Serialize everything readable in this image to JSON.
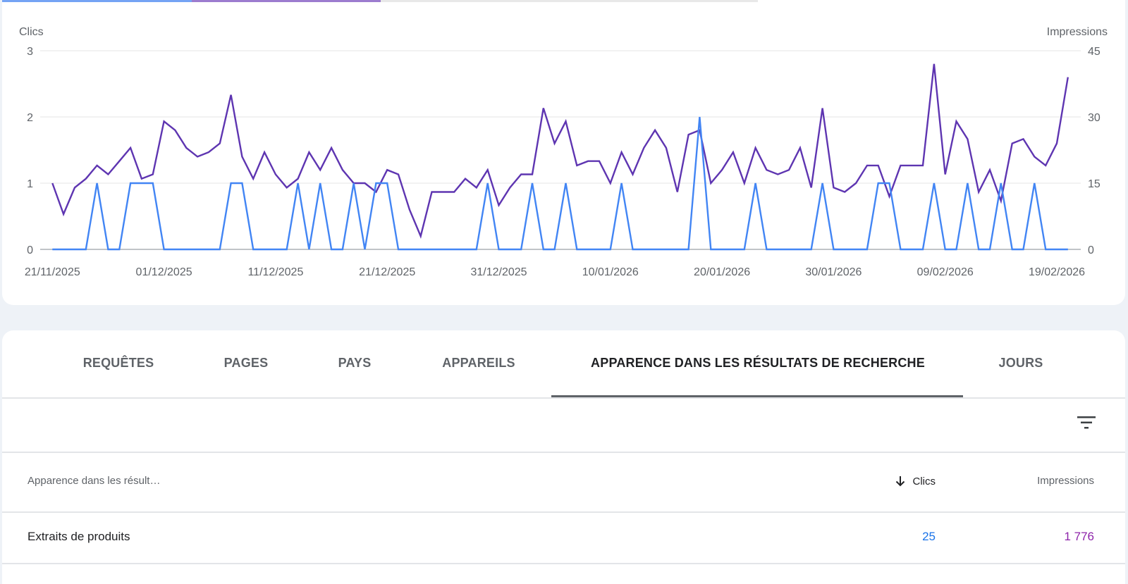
{
  "colors": {
    "clicks": "#4285f4",
    "impressions": "#5e35b1",
    "strip_clicks": "#74a3f4",
    "strip_impressions": "#9c7ccf",
    "strip_rest": "#e8e8e8"
  },
  "chart_data": {
    "type": "line",
    "left_axis_title": "Clics",
    "right_axis_title": "Impressions",
    "left_ylim": [
      0,
      3
    ],
    "right_ylim": [
      0,
      45
    ],
    "left_ticks": [
      "0",
      "1",
      "2",
      "3"
    ],
    "right_ticks": [
      "0",
      "15",
      "30",
      "45"
    ],
    "x_tick_labels": [
      "21/11/2025",
      "01/12/2025",
      "11/12/2025",
      "21/12/2025",
      "31/12/2025",
      "10/01/2026",
      "20/01/2026",
      "30/01/2026",
      "09/02/2026",
      "19/02/2026"
    ],
    "x_start": "21/11/2025",
    "x_end": "20/02/2026",
    "grid": true,
    "series": [
      {
        "name": "Clics",
        "axis": "left",
        "color": "#4285f4",
        "values": [
          0,
          0,
          0,
          0,
          1,
          0,
          0,
          1,
          1,
          1,
          0,
          0,
          0,
          0,
          0,
          0,
          1,
          1,
          0,
          0,
          0,
          0,
          1,
          0,
          1,
          0,
          0,
          1,
          0,
          1,
          1,
          0,
          0,
          0,
          0,
          0,
          0,
          0,
          0,
          1,
          0,
          0,
          0,
          1,
          0,
          0,
          1,
          0,
          0,
          0,
          0,
          1,
          0,
          0,
          0,
          0,
          0,
          0,
          2,
          0,
          0,
          0,
          0,
          1,
          0,
          0,
          0,
          0,
          0,
          1,
          0,
          0,
          0,
          0,
          1,
          1,
          0,
          0,
          0,
          1,
          0,
          0,
          1,
          0,
          0,
          1,
          0,
          0,
          1,
          0,
          0,
          0
        ]
      },
      {
        "name": "Impressions",
        "axis": "right",
        "color": "#5e35b1",
        "values": [
          15,
          8,
          14,
          16,
          19,
          17,
          20,
          23,
          16,
          17,
          29,
          27,
          23,
          21,
          22,
          24,
          35,
          21,
          16,
          22,
          17,
          14,
          16,
          22,
          18,
          23,
          18,
          15,
          15,
          13,
          18,
          17,
          9,
          3,
          13,
          13,
          13,
          16,
          14,
          18,
          10,
          14,
          17,
          17,
          32,
          24,
          29,
          19,
          20,
          20,
          15,
          22,
          17,
          23,
          27,
          23,
          13,
          26,
          27,
          15,
          18,
          22,
          15,
          23,
          18,
          17,
          18,
          23,
          14,
          32,
          14,
          13,
          15,
          19,
          19,
          12,
          19,
          19,
          19,
          42,
          17,
          29,
          25,
          13,
          18,
          11,
          24,
          25,
          21,
          19,
          24,
          39
        ]
      }
    ]
  },
  "tabs": [
    {
      "label": "REQUÊTES",
      "active": false
    },
    {
      "label": "PAGES",
      "active": false
    },
    {
      "label": "PAYS",
      "active": false
    },
    {
      "label": "APPAREILS",
      "active": false
    },
    {
      "label": "APPARENCE DANS LES RÉSULTATS DE RECHERCHE",
      "active": true
    },
    {
      "label": "JOURS",
      "active": false
    }
  ],
  "table": {
    "filter_icon": "filter-list-icon",
    "sort_icon": "arrow-downward-icon",
    "columns": {
      "name": "Apparence dans les résult…",
      "clicks": "Clics",
      "impressions": "Impressions"
    },
    "rows": [
      {
        "name": "Extraits de produits",
        "clicks": "25",
        "impressions": "1 776"
      }
    ]
  }
}
